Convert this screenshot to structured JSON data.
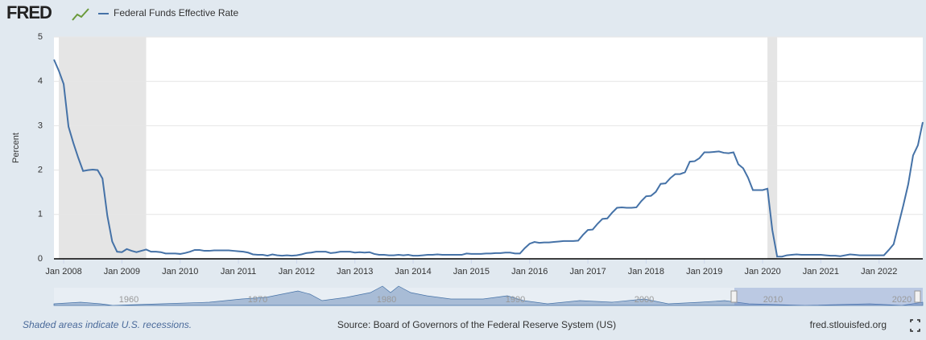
{
  "header": {
    "logo": "FRED"
  },
  "chart_data": {
    "type": "line",
    "y_label": "Percent",
    "x": [
      "2007-11",
      "2007-12",
      "2008-01",
      "2008-02",
      "2008-03",
      "2008-04",
      "2008-05",
      "2008-06",
      "2008-07",
      "2008-08",
      "2008-09",
      "2008-10",
      "2008-11",
      "2008-12",
      "2009-01",
      "2009-02",
      "2009-03",
      "2009-04",
      "2009-05",
      "2009-06",
      "2009-07",
      "2009-08",
      "2009-09",
      "2009-10",
      "2009-11",
      "2009-12",
      "2010-01",
      "2010-02",
      "2010-03",
      "2010-04",
      "2010-05",
      "2010-06",
      "2010-07",
      "2010-08",
      "2010-09",
      "2010-10",
      "2010-11",
      "2010-12",
      "2011-01",
      "2011-02",
      "2011-03",
      "2011-04",
      "2011-05",
      "2011-06",
      "2011-07",
      "2011-08",
      "2011-09",
      "2011-10",
      "2011-11",
      "2011-12",
      "2012-01",
      "2012-02",
      "2012-03",
      "2012-04",
      "2012-05",
      "2012-06",
      "2012-07",
      "2012-08",
      "2012-09",
      "2012-10",
      "2012-11",
      "2012-12",
      "2013-01",
      "2013-02",
      "2013-03",
      "2013-04",
      "2013-05",
      "2013-06",
      "2013-07",
      "2013-08",
      "2013-09",
      "2013-10",
      "2013-11",
      "2013-12",
      "2014-01",
      "2014-02",
      "2014-03",
      "2014-04",
      "2014-05",
      "2014-06",
      "2014-07",
      "2014-08",
      "2014-09",
      "2014-10",
      "2014-11",
      "2014-12",
      "2015-01",
      "2015-02",
      "2015-03",
      "2015-04",
      "2015-05",
      "2015-06",
      "2015-07",
      "2015-08",
      "2015-09",
      "2015-10",
      "2015-11",
      "2015-12",
      "2016-01",
      "2016-02",
      "2016-03",
      "2016-04",
      "2016-05",
      "2016-06",
      "2016-07",
      "2016-08",
      "2016-09",
      "2016-10",
      "2016-11",
      "2016-12",
      "2017-01",
      "2017-02",
      "2017-03",
      "2017-04",
      "2017-05",
      "2017-06",
      "2017-07",
      "2017-08",
      "2017-09",
      "2017-10",
      "2017-11",
      "2017-12",
      "2018-01",
      "2018-02",
      "2018-03",
      "2018-04",
      "2018-05",
      "2018-06",
      "2018-07",
      "2018-08",
      "2018-09",
      "2018-10",
      "2018-11",
      "2018-12",
      "2019-01",
      "2019-02",
      "2019-03",
      "2019-04",
      "2019-05",
      "2019-06",
      "2019-07",
      "2019-08",
      "2019-09",
      "2019-10",
      "2019-11",
      "2019-12",
      "2020-01",
      "2020-02",
      "2020-03",
      "2020-04",
      "2020-05",
      "2020-06",
      "2020-07",
      "2020-08",
      "2020-09",
      "2020-10",
      "2020-11",
      "2020-12",
      "2021-01",
      "2021-02",
      "2021-03",
      "2021-04",
      "2021-05",
      "2021-06",
      "2021-07",
      "2021-08",
      "2021-09",
      "2021-10",
      "2021-11",
      "2021-12",
      "2022-01",
      "2022-02",
      "2022-03",
      "2022-04",
      "2022-05",
      "2022-06",
      "2022-07",
      "2022-08",
      "2022-09",
      "2022-10"
    ],
    "series": [
      {
        "name": "Federal Funds Effective Rate",
        "color": "#4572a7",
        "values": [
          4.49,
          4.24,
          3.94,
          2.98,
          2.61,
          2.28,
          1.98,
          2.0,
          2.01,
          2.0,
          1.81,
          0.97,
          0.39,
          0.16,
          0.15,
          0.22,
          0.18,
          0.15,
          0.18,
          0.21,
          0.16,
          0.16,
          0.15,
          0.12,
          0.12,
          0.12,
          0.11,
          0.13,
          0.16,
          0.2,
          0.2,
          0.18,
          0.18,
          0.19,
          0.19,
          0.19,
          0.19,
          0.18,
          0.17,
          0.16,
          0.14,
          0.1,
          0.09,
          0.09,
          0.07,
          0.1,
          0.08,
          0.07,
          0.08,
          0.07,
          0.08,
          0.1,
          0.13,
          0.14,
          0.16,
          0.16,
          0.16,
          0.13,
          0.14,
          0.16,
          0.16,
          0.16,
          0.14,
          0.15,
          0.14,
          0.15,
          0.11,
          0.09,
          0.09,
          0.08,
          0.08,
          0.09,
          0.08,
          0.09,
          0.07,
          0.07,
          0.08,
          0.09,
          0.09,
          0.1,
          0.09,
          0.09,
          0.09,
          0.09,
          0.09,
          0.12,
          0.11,
          0.11,
          0.11,
          0.12,
          0.12,
          0.13,
          0.13,
          0.14,
          0.14,
          0.12,
          0.12,
          0.24,
          0.34,
          0.38,
          0.36,
          0.37,
          0.37,
          0.38,
          0.39,
          0.4,
          0.4,
          0.4,
          0.41,
          0.54,
          0.65,
          0.66,
          0.79,
          0.9,
          0.91,
          1.04,
          1.15,
          1.16,
          1.15,
          1.15,
          1.16,
          1.3,
          1.41,
          1.42,
          1.51,
          1.69,
          1.7,
          1.82,
          1.91,
          1.91,
          1.95,
          2.19,
          2.2,
          2.27,
          2.4,
          2.4,
          2.41,
          2.42,
          2.39,
          2.38,
          2.4,
          2.13,
          2.04,
          1.83,
          1.55,
          1.55,
          1.55,
          1.58,
          0.65,
          0.05,
          0.05,
          0.08,
          0.09,
          0.1,
          0.09,
          0.09,
          0.09,
          0.09,
          0.09,
          0.08,
          0.07,
          0.07,
          0.06,
          0.08,
          0.1,
          0.09,
          0.08,
          0.08,
          0.08,
          0.08,
          0.08,
          0.08,
          0.2,
          0.33,
          0.77,
          1.21,
          1.68,
          2.33,
          2.56,
          3.08
        ]
      }
    ],
    "recessions": [
      [
        "2007-12",
        "2009-06"
      ],
      [
        "2020-02",
        "2020-04"
      ]
    ],
    "xlim": [
      "2007-11",
      "2022-10"
    ],
    "xticks": [
      {
        "value": "2008-01",
        "label": "Jan 2008"
      },
      {
        "value": "2009-01",
        "label": "Jan 2009"
      },
      {
        "value": "2010-01",
        "label": "Jan 2010"
      },
      {
        "value": "2011-01",
        "label": "Jan 2011"
      },
      {
        "value": "2012-01",
        "label": "Jan 2012"
      },
      {
        "value": "2013-01",
        "label": "Jan 2013"
      },
      {
        "value": "2014-01",
        "label": "Jan 2014"
      },
      {
        "value": "2015-01",
        "label": "Jan 2015"
      },
      {
        "value": "2016-01",
        "label": "Jan 2016"
      },
      {
        "value": "2017-01",
        "label": "Jan 2017"
      },
      {
        "value": "2018-01",
        "label": "Jan 2018"
      },
      {
        "value": "2019-01",
        "label": "Jan 2019"
      },
      {
        "value": "2020-01",
        "label": "Jan 2020"
      },
      {
        "value": "2021-01",
        "label": "Jan 2021"
      },
      {
        "value": "2022-01",
        "label": "Jan 2022"
      }
    ],
    "ylim": [
      0,
      5
    ],
    "yticks": [
      0,
      1,
      2,
      3,
      4,
      5
    ],
    "grid": true,
    "navigator_labels": [
      "1960",
      "1970",
      "1980",
      "1990",
      "2000",
      "2010",
      "2020"
    ]
  },
  "footer": {
    "note": "Shaded areas indicate U.S. recessions.",
    "source": "Source: Board of Governors of the Federal Reserve System (US)",
    "site": "fred.stlouisfed.org"
  }
}
